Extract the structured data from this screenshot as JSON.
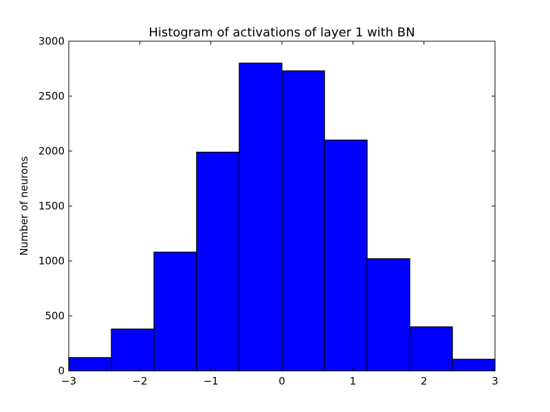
{
  "chart_data": {
    "type": "bar",
    "title": "Histogram of activations of layer 1  with BN",
    "xlabel": "",
    "ylabel": "Number of neurons",
    "xlim": [
      -3,
      3
    ],
    "ylim": [
      0,
      3000
    ],
    "bin_edges": [
      -3,
      -2.4,
      -1.8,
      -1.2,
      -0.6,
      0,
      0.6,
      1.2,
      1.8,
      2.4,
      3
    ],
    "values": [
      120,
      380,
      1080,
      1990,
      2800,
      2730,
      2100,
      1020,
      400,
      105
    ],
    "x_ticks": [
      -3,
      -2,
      -1,
      0,
      1,
      2,
      3
    ],
    "x_tick_labels": [
      "−3",
      "−2",
      "−1",
      "0",
      "1",
      "2",
      "3"
    ],
    "y_ticks": [
      0,
      500,
      1000,
      1500,
      2000,
      2500,
      3000
    ],
    "y_tick_labels": [
      "0",
      "500",
      "1000",
      "1500",
      "2000",
      "2500",
      "3000"
    ],
    "bar_color": "#0000ff",
    "edge_color": "#000000",
    "grid": false
  }
}
